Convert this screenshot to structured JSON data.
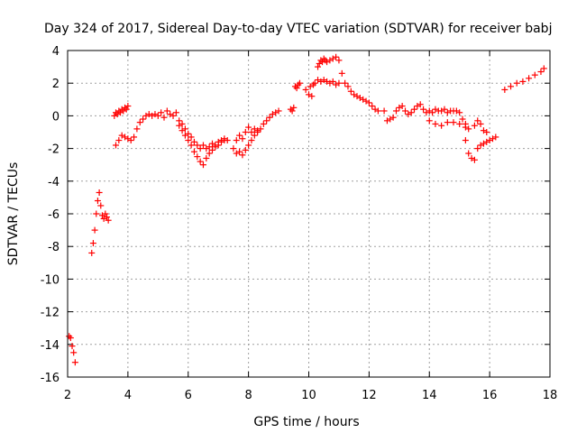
{
  "chart_data": {
    "type": "scatter",
    "title": "Day 324 of 2017, Sidereal Day-to-day VTEC variation (SDTVAR) for receiver babj",
    "xlabel": "GPS time / hours",
    "ylabel": "SDTVAR / TECUs",
    "xlim": [
      2,
      18
    ],
    "ylim": [
      -16,
      4
    ],
    "xticks": [
      2,
      4,
      6,
      8,
      10,
      12,
      14,
      16,
      18
    ],
    "yticks": [
      -16,
      -14,
      -12,
      -10,
      -8,
      -6,
      -4,
      -2,
      0,
      2,
      4
    ],
    "grid": true,
    "marker": "+",
    "color": "#ff0000",
    "series": [
      {
        "name": "SDTVAR",
        "x": [
          2.05,
          2.1,
          2.15,
          2.2,
          2.25,
          2.8,
          2.85,
          2.9,
          2.95,
          3.0,
          3.05,
          3.1,
          3.15,
          3.2,
          3.25,
          3.3,
          3.35,
          3.55,
          3.6,
          3.65,
          3.7,
          3.75,
          3.8,
          3.85,
          3.9,
          3.95,
          4.0,
          3.6,
          3.7,
          3.8,
          3.9,
          4.0,
          4.1,
          4.2,
          4.3,
          4.4,
          4.5,
          4.6,
          4.7,
          4.8,
          4.9,
          5.0,
          5.1,
          5.2,
          5.3,
          5.4,
          5.5,
          5.6,
          5.7,
          5.8,
          5.9,
          6.0,
          6.1,
          6.2,
          6.3,
          6.4,
          6.5,
          6.6,
          6.7,
          6.8,
          6.9,
          7.0,
          7.1,
          7.2,
          7.3,
          5.7,
          5.8,
          5.9,
          6.0,
          6.1,
          6.2,
          6.3,
          6.4,
          6.5,
          6.6,
          6.7,
          6.8,
          6.9,
          7.0,
          7.1,
          7.2,
          7.5,
          7.6,
          7.7,
          7.8,
          7.9,
          8.0,
          8.1,
          8.2,
          8.3,
          8.4,
          8.5,
          8.6,
          8.7,
          8.8,
          8.9,
          9.0,
          7.6,
          7.7,
          7.8,
          7.9,
          8.0,
          8.1,
          8.2,
          8.3,
          9.4,
          9.45,
          9.5,
          9.55,
          9.6,
          9.65,
          9.7,
          9.9,
          10.0,
          10.05,
          10.1,
          10.15,
          10.2,
          10.3,
          10.4,
          10.5,
          10.6,
          10.7,
          10.8,
          10.9,
          11.0,
          10.3,
          10.35,
          10.4,
          10.45,
          10.5,
          10.55,
          10.6,
          10.7,
          10.8,
          10.9,
          11.0,
          11.1,
          11.2,
          11.3,
          11.4,
          11.5,
          11.6,
          11.7,
          11.8,
          11.9,
          12.0,
          12.1,
          12.2,
          12.3,
          12.5,
          12.6,
          12.7,
          12.8,
          12.9,
          13.0,
          13.1,
          13.2,
          13.3,
          13.4,
          13.5,
          13.6,
          13.7,
          13.8,
          13.9,
          14.0,
          14.1,
          14.2,
          14.3,
          14.4,
          14.5,
          14.6,
          14.7,
          14.8,
          14.9,
          15.0,
          15.1,
          15.2,
          15.3,
          14.0,
          14.2,
          14.4,
          14.6,
          14.8,
          15.0,
          15.2,
          15.2,
          15.3,
          15.4,
          15.5,
          15.6,
          15.7,
          15.8,
          15.9,
          16.0,
          16.1,
          16.2,
          15.5,
          15.6,
          15.7,
          15.8,
          15.9,
          16.5,
          16.7,
          16.9,
          17.1,
          17.3,
          17.5,
          17.7,
          17.8
        ],
        "y": [
          -13.5,
          -13.6,
          -14.1,
          -14.5,
          -15.1,
          -8.4,
          -7.8,
          -7.0,
          -6.0,
          -5.2,
          -4.7,
          -5.5,
          -6.1,
          -6.3,
          -6.0,
          -6.2,
          -6.4,
          0.0,
          0.2,
          0.1,
          0.3,
          0.2,
          0.4,
          0.3,
          0.5,
          0.4,
          0.6,
          -1.8,
          -1.5,
          -1.2,
          -1.3,
          -1.4,
          -1.5,
          -1.3,
          -0.8,
          -0.4,
          -0.2,
          0.0,
          0.1,
          0.0,
          0.1,
          0.0,
          0.2,
          -0.1,
          0.3,
          0.1,
          0.0,
          0.2,
          -0.3,
          -0.5,
          -0.8,
          -1.1,
          -1.3,
          -1.6,
          -1.8,
          -2.0,
          -1.8,
          -2.0,
          -1.9,
          -1.7,
          -1.8,
          -1.6,
          -1.5,
          -1.4,
          -1.5,
          -0.6,
          -0.9,
          -1.2,
          -1.5,
          -1.8,
          -2.2,
          -2.5,
          -2.8,
          -3.0,
          -2.6,
          -2.3,
          -2.1,
          -1.9,
          -1.8,
          -1.6,
          -1.5,
          -2.0,
          -2.3,
          -2.2,
          -2.4,
          -2.1,
          -1.8,
          -1.5,
          -1.2,
          -1.0,
          -0.8,
          -0.5,
          -0.3,
          -0.1,
          0.1,
          0.2,
          0.3,
          -1.5,
          -1.2,
          -1.4,
          -1.0,
          -0.7,
          -1.0,
          -0.8,
          -0.9,
          0.4,
          0.3,
          0.5,
          1.8,
          1.7,
          1.9,
          2.0,
          1.6,
          1.3,
          1.8,
          1.2,
          1.9,
          2.0,
          2.2,
          2.1,
          2.2,
          2.1,
          2.0,
          2.1,
          1.9,
          2.0,
          3.0,
          3.2,
          3.4,
          3.3,
          3.5,
          3.4,
          3.3,
          3.4,
          3.5,
          3.6,
          3.4,
          2.6,
          2.0,
          1.8,
          1.5,
          1.3,
          1.2,
          1.1,
          1.0,
          0.9,
          0.8,
          0.6,
          0.4,
          0.3,
          0.3,
          -0.3,
          -0.2,
          -0.1,
          0.3,
          0.5,
          0.6,
          0.3,
          0.1,
          0.2,
          0.4,
          0.6,
          0.7,
          0.4,
          0.2,
          0.3,
          0.2,
          0.4,
          0.3,
          0.3,
          0.4,
          0.2,
          0.3,
          0.3,
          0.3,
          0.2,
          -0.2,
          -0.5,
          -0.8,
          -0.3,
          -0.5,
          -0.6,
          -0.4,
          -0.4,
          -0.5,
          -0.7,
          -1.5,
          -2.3,
          -2.6,
          -2.7,
          -2.0,
          -1.8,
          -1.7,
          -1.6,
          -1.5,
          -1.4,
          -1.3,
          -0.6,
          -0.3,
          -0.5,
          -0.9,
          -1.0,
          1.6,
          1.8,
          2.0,
          2.1,
          2.3,
          2.5,
          2.7,
          2.9
        ]
      }
    ]
  }
}
